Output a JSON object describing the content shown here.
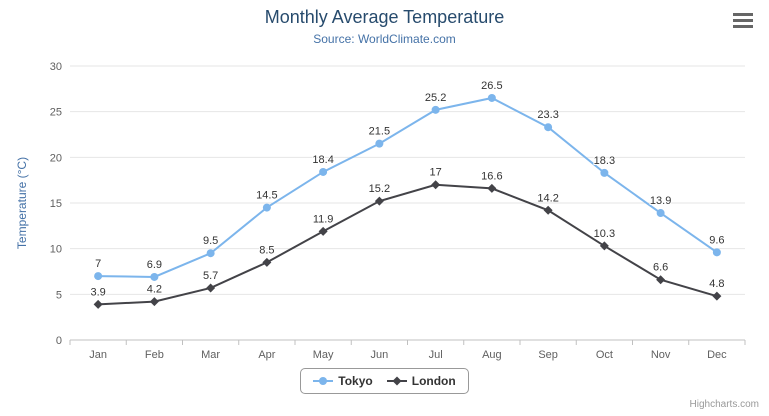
{
  "chart": {
    "title": "Monthly Average Temperature",
    "subtitle": "Source: WorldClimate.com",
    "credits": "Highcharts.com",
    "menu_icon": "hamburger-icon"
  },
  "chart_data": {
    "type": "line",
    "title": "Monthly Average Temperature",
    "subtitle": "Source: WorldClimate.com",
    "categories": [
      "Jan",
      "Feb",
      "Mar",
      "Apr",
      "May",
      "Jun",
      "Jul",
      "Aug",
      "Sep",
      "Oct",
      "Nov",
      "Dec"
    ],
    "series": [
      {
        "name": "Tokyo",
        "color": "#7cb5ec",
        "marker": "circle",
        "values": [
          7,
          6.9,
          9.5,
          14.5,
          18.4,
          21.5,
          25.2,
          26.5,
          23.3,
          18.3,
          13.9,
          9.6
        ]
      },
      {
        "name": "London",
        "color": "#434348",
        "marker": "diamond",
        "values": [
          3.9,
          4.2,
          5.7,
          8.5,
          11.9,
          15.2,
          17,
          16.6,
          14.2,
          10.3,
          6.6,
          4.8
        ]
      }
    ],
    "xlabel": "",
    "ylabel": "Temperature (°C)",
    "ylim": [
      0,
      30
    ],
    "yticks": [
      0,
      5,
      10,
      15,
      20,
      25,
      30
    ],
    "grid": true,
    "data_labels": true,
    "legend_position": "bottom"
  }
}
